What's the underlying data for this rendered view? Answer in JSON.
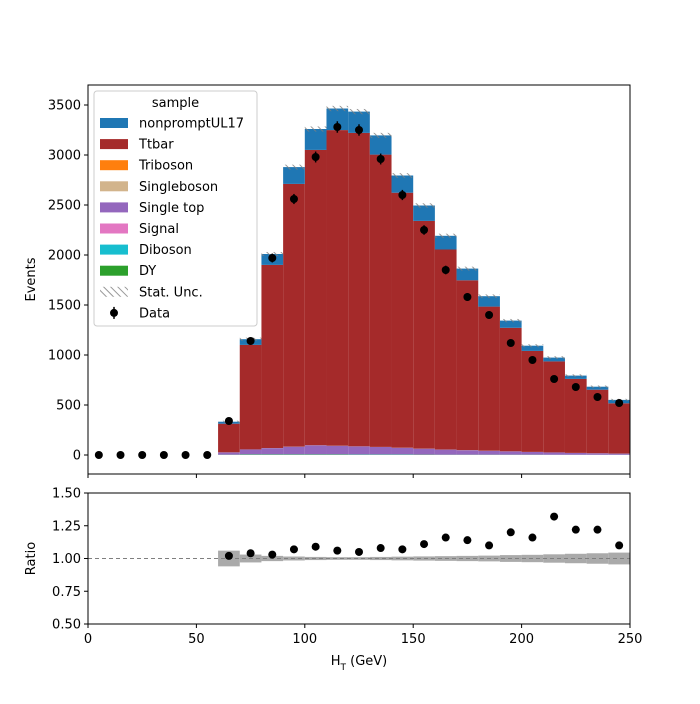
{
  "chart_data": {
    "type": "bar",
    "subtype": "stacked-histogram-with-ratio",
    "x": {
      "label": "H_T (GeV)",
      "label_base": "H",
      "label_sub": "T",
      "label_unit": " (GeV)",
      "range": [
        0,
        250
      ],
      "ticks": [
        0,
        50,
        100,
        150,
        200,
        250
      ],
      "bin_edges": [
        0,
        10,
        20,
        30,
        40,
        50,
        60,
        70,
        80,
        90,
        100,
        110,
        120,
        130,
        140,
        150,
        160,
        170,
        180,
        190,
        200,
        210,
        220,
        230,
        240,
        250
      ]
    },
    "main": {
      "ylabel": "Events",
      "ylim": [
        -190,
        3700
      ],
      "yticks": [
        0,
        500,
        1000,
        1500,
        2000,
        2500,
        3000,
        3500
      ]
    },
    "ratio": {
      "ylabel": "Ratio",
      "ylim": [
        0.5,
        1.5
      ],
      "yticks": [
        0.5,
        0.75,
        1.0,
        1.25,
        1.5
      ],
      "ytick_labels": [
        "0.50",
        "0.75",
        "1.00",
        "1.25",
        "1.50"
      ],
      "reference_line": 1.0,
      "values": [
        null,
        null,
        null,
        null,
        null,
        null,
        1.02,
        1.04,
        1.03,
        1.07,
        1.09,
        1.06,
        1.05,
        1.08,
        1.07,
        1.11,
        1.16,
        1.14,
        1.1,
        1.2,
        1.16,
        1.32,
        1.22,
        1.22,
        1.1
      ],
      "uncertainty": [
        0,
        0,
        0,
        0,
        0,
        0,
        0.06,
        0.03,
        0.02,
        0.015,
        0.012,
        0.01,
        0.01,
        0.012,
        0.014,
        0.016,
        0.018,
        0.02,
        0.022,
        0.026,
        0.028,
        0.032,
        0.036,
        0.04,
        0.045
      ]
    },
    "series": [
      {
        "name": "DY",
        "color": "#2ca02c",
        "values": [
          0,
          0,
          0,
          0,
          0,
          0,
          2,
          4,
          4,
          4,
          4,
          4,
          3,
          3,
          3,
          3,
          2,
          2,
          2,
          2,
          2,
          1,
          1,
          1,
          1
        ]
      },
      {
        "name": "Diboson",
        "color": "#17becf",
        "values": [
          0,
          0,
          0,
          0,
          0,
          0,
          1,
          2,
          2,
          2,
          2,
          2,
          2,
          2,
          2,
          1,
          1,
          1,
          1,
          1,
          1,
          1,
          1,
          1,
          1
        ]
      },
      {
        "name": "Signal",
        "color": "#e377c2",
        "values": [
          0,
          0,
          0,
          0,
          0,
          0,
          1,
          1,
          1,
          1,
          1,
          1,
          1,
          1,
          1,
          1,
          1,
          1,
          1,
          1,
          1,
          1,
          1,
          1,
          1
        ]
      },
      {
        "name": "Single top",
        "color": "#9467bd",
        "values": [
          0,
          0,
          0,
          0,
          0,
          0,
          22,
          48,
          62,
          76,
          90,
          85,
          80,
          74,
          66,
          58,
          50,
          44,
          38,
          32,
          26,
          22,
          17,
          14,
          11
        ]
      },
      {
        "name": "Singleboson",
        "color": "#d2b48c",
        "values": [
          0,
          0,
          0,
          0,
          0,
          0,
          1,
          1,
          1,
          1,
          1,
          1,
          1,
          1,
          1,
          1,
          1,
          1,
          1,
          1,
          1,
          1,
          1,
          1,
          1
        ]
      },
      {
        "name": "Triboson",
        "color": "#ff7f0e",
        "values": [
          0,
          0,
          0,
          0,
          0,
          0,
          0,
          0,
          0,
          0,
          0,
          0,
          0,
          0,
          0,
          0,
          0,
          0,
          0,
          0,
          0,
          0,
          0,
          0,
          0
        ]
      },
      {
        "name": "Ttbar",
        "color": "#a52a2a",
        "values": [
          0,
          0,
          0,
          0,
          0,
          0,
          286,
          1045,
          1831,
          2627,
          2953,
          3156,
          3134,
          2923,
          2550,
          2277,
          2000,
          1698,
          1441,
          1235,
          1010,
          910,
          740,
          635,
          502
        ]
      },
      {
        "name": "nonpromptUL17",
        "color": "#1f77b4",
        "values": [
          0,
          0,
          0,
          0,
          0,
          0,
          20,
          57,
          109,
          168,
          209,
          216,
          213,
          192,
          172,
          154,
          137,
          117,
          104,
          72,
          52,
          38,
          33,
          30,
          34
        ]
      }
    ],
    "data": {
      "name": "Data",
      "values": [
        0,
        0,
        0,
        0,
        0,
        0,
        340,
        1140,
        1970,
        2560,
        2980,
        3280,
        3250,
        2960,
        2600,
        2250,
        1850,
        1580,
        1400,
        1120,
        950,
        760,
        680,
        580,
        520
      ]
    },
    "stat_unc_label": "Stat. Unc.",
    "legend": {
      "title": "sample",
      "placement": "upper-left",
      "order": [
        "nonpromptUL17",
        "Ttbar",
        "Triboson",
        "Singleboson",
        "Single top",
        "Signal",
        "Diboson",
        "DY",
        "Stat. Unc.",
        "Data"
      ]
    }
  }
}
